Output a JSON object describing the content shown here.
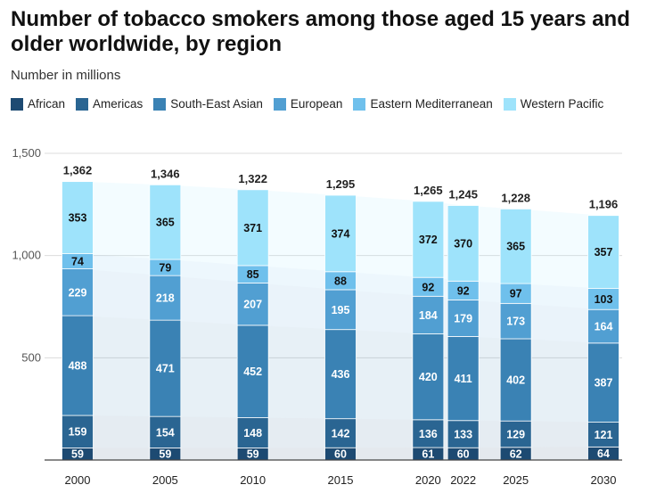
{
  "header": {
    "title": "Number of tobacco smokers among those aged 15 years and older worldwide, by region",
    "subtitle": "Number in millions"
  },
  "chart_data": {
    "type": "bar",
    "stacked": true,
    "title": "Number of tobacco smokers among those aged 15 years and older worldwide, by region",
    "ylabel": "Number in millions",
    "xlabel": "",
    "ylim": [
      0,
      1500
    ],
    "yticks": [
      "500",
      "1,000",
      "1,500"
    ],
    "grid": true,
    "legend_position": "top-left",
    "categories": [
      "2000",
      "2005",
      "2010",
      "2015",
      "2020",
      "2022",
      "2025",
      "2030"
    ],
    "x": [
      2000,
      2005,
      2010,
      2015,
      2020,
      2022,
      2025,
      2030
    ],
    "series": [
      {
        "name": "African",
        "color": "#1d4a72",
        "label_color": "#ffffff",
        "values": [
          59,
          59,
          59,
          60,
          61,
          60,
          62,
          64
        ]
      },
      {
        "name": "Americas",
        "color": "#2a6592",
        "label_color": "#ffffff",
        "values": [
          159,
          154,
          148,
          142,
          136,
          133,
          129,
          121
        ]
      },
      {
        "name": "South-East Asian",
        "color": "#3a82b4",
        "label_color": "#ffffff",
        "values": [
          488,
          471,
          452,
          436,
          420,
          411,
          402,
          387
        ]
      },
      {
        "name": "European",
        "color": "#519fd2",
        "label_color": "#ffffff",
        "values": [
          229,
          218,
          207,
          195,
          184,
          179,
          173,
          164
        ]
      },
      {
        "name": "Eastern Mediterranean",
        "color": "#6fc0ec",
        "label_color": "#111111",
        "values": [
          74,
          79,
          85,
          88,
          92,
          92,
          97,
          103
        ]
      },
      {
        "name": "Western Pacific",
        "color": "#9ee3fb",
        "label_color": "#111111",
        "values": [
          353,
          365,
          371,
          374,
          372,
          370,
          365,
          357
        ]
      }
    ],
    "totals": [
      1362,
      1346,
      1322,
      1295,
      1265,
      1245,
      1228,
      1196
    ],
    "total_labels": [
      "1,362",
      "1,346",
      "1,322",
      "1,295",
      "1,265",
      "1,245",
      "1,228",
      "1,196"
    ]
  }
}
